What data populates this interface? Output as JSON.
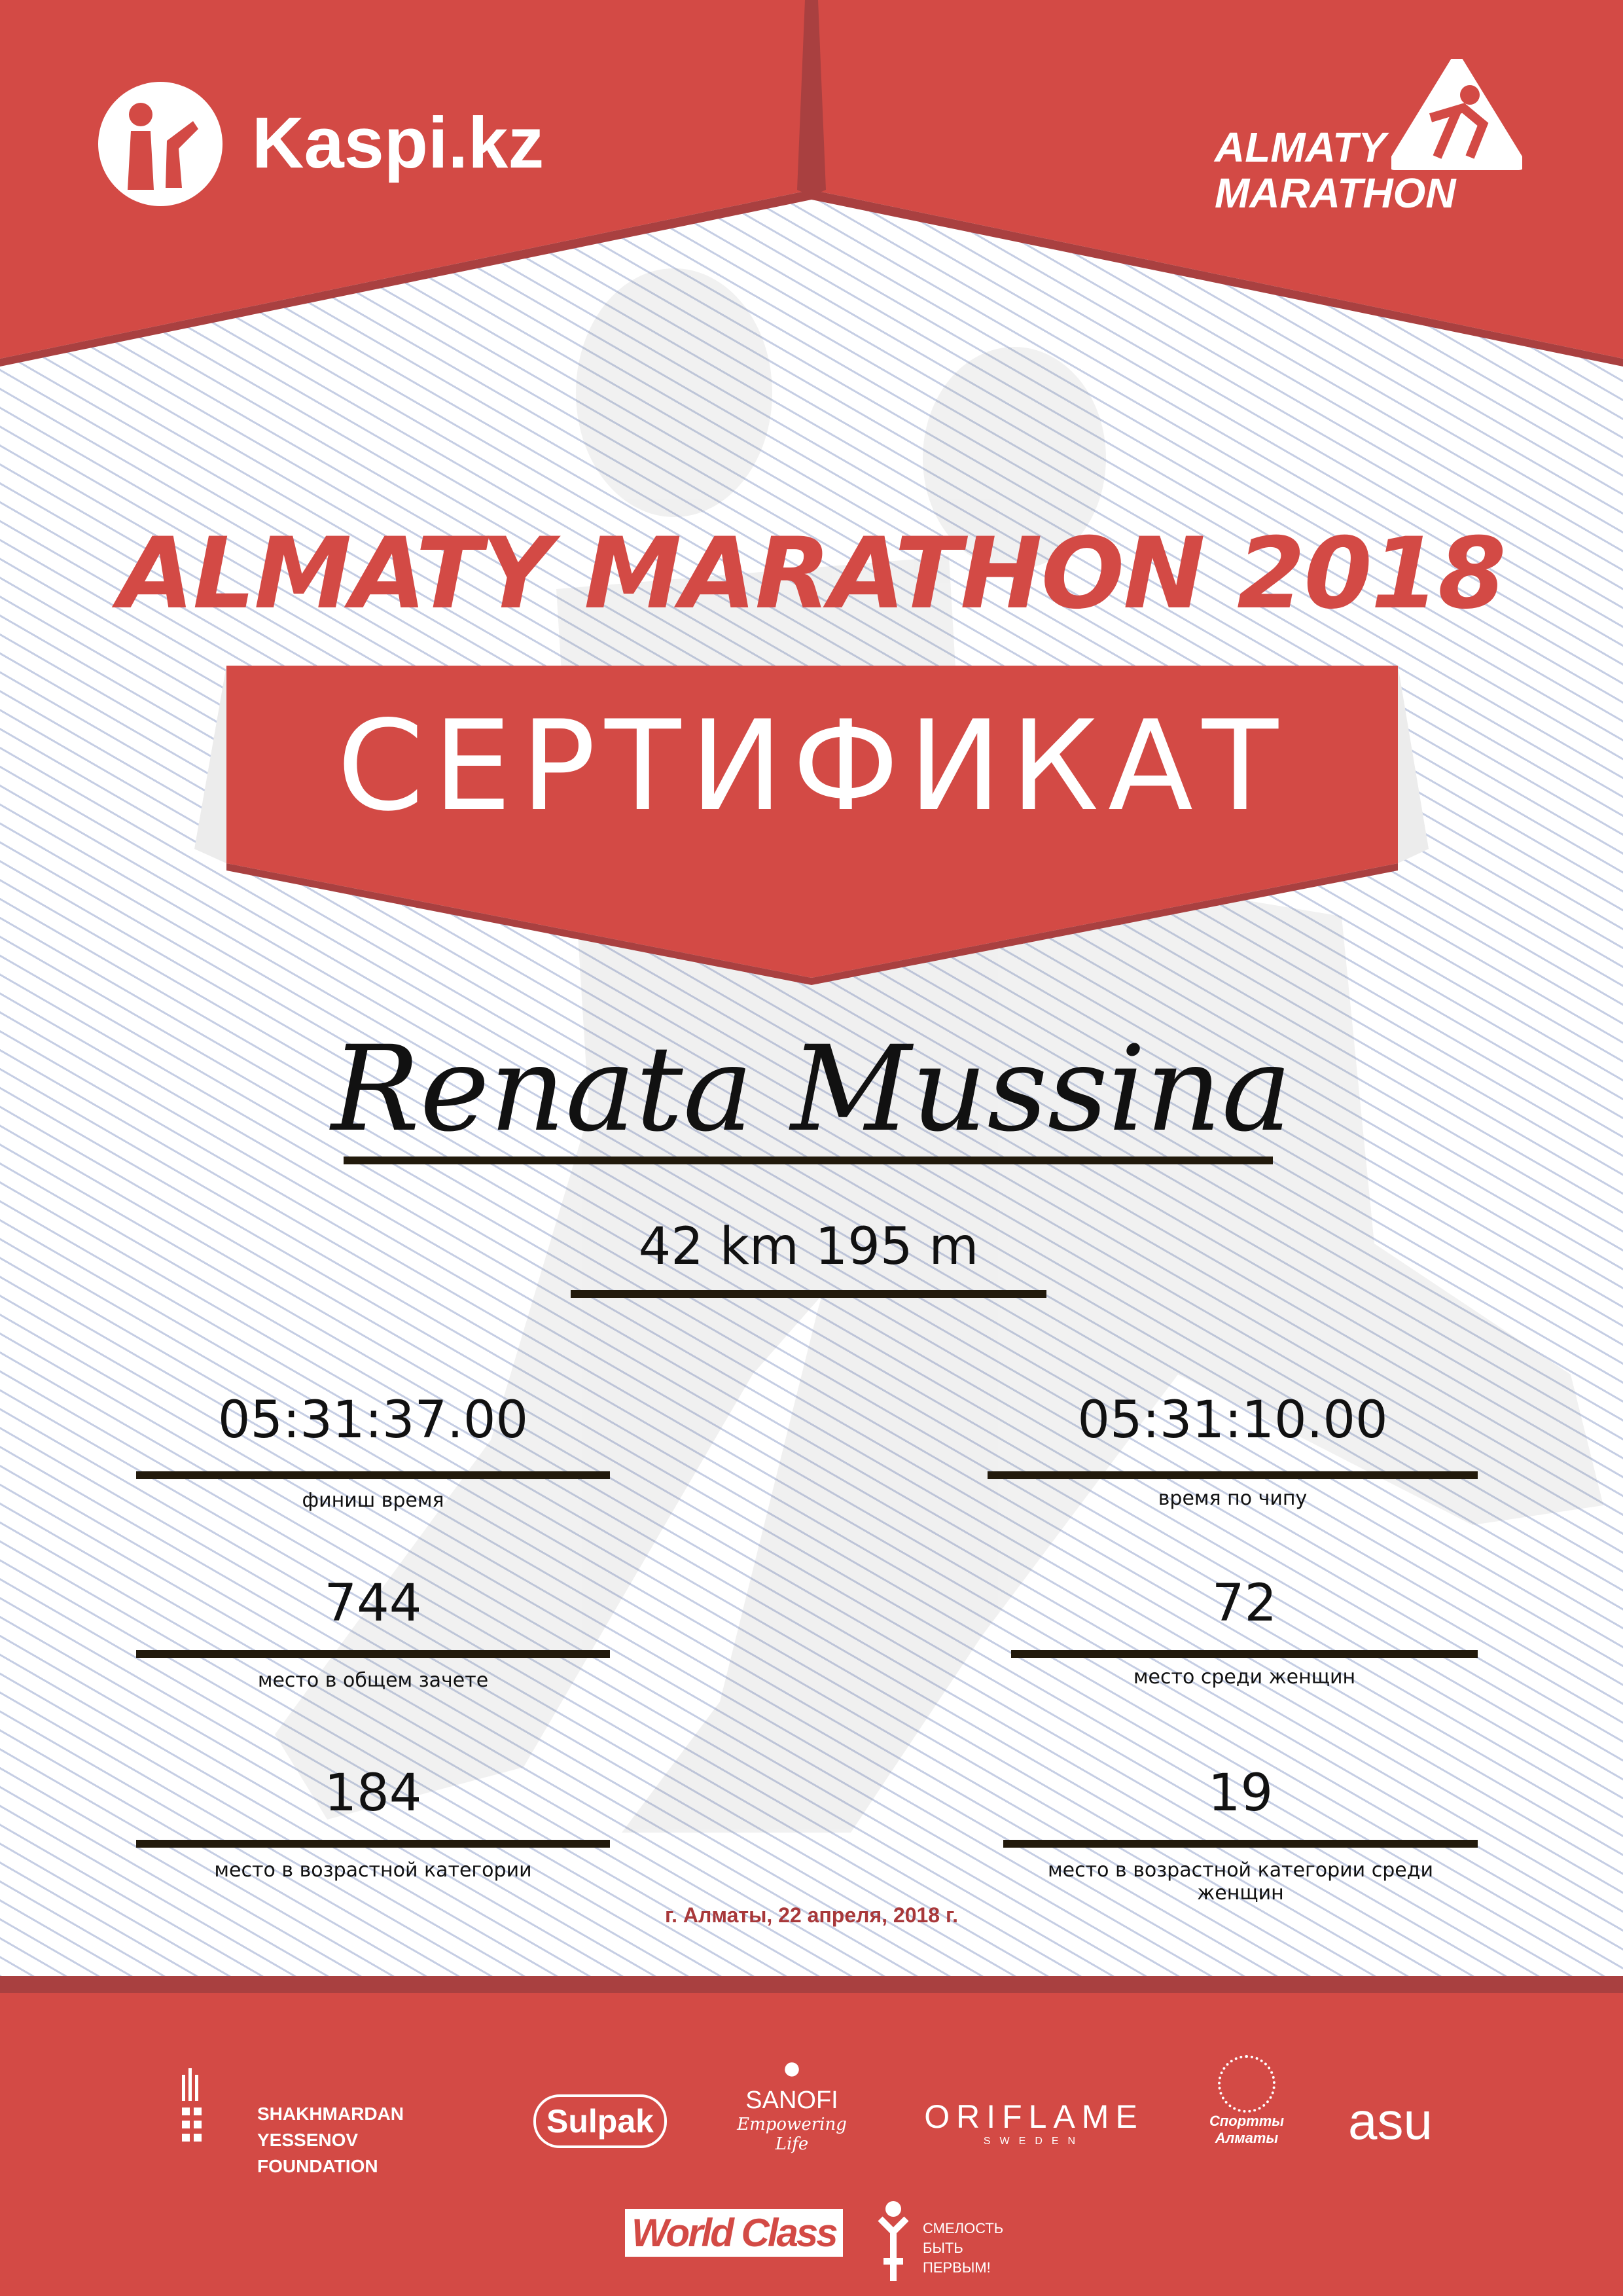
{
  "header": {
    "left_logo": "Kaspi.kz",
    "right_logo": "ALMATY MARATHON"
  },
  "title": "ALMATY MARATHON 2018",
  "banner": "СЕРТИФИКАТ",
  "participant_name": "Renata Mussina",
  "distance": "42 km 195 m",
  "results": [
    {
      "value": "05:31:37.00",
      "label": "финиш время"
    },
    {
      "value": "05:31:10.00",
      "label": "время по чипу"
    },
    {
      "value": "744",
      "label": "место в общем зачете"
    },
    {
      "value": "72",
      "label": "место среди женщин"
    },
    {
      "value": "184",
      "label": "место в возрастной категории"
    },
    {
      "value": "19",
      "label": "место в возрастной категории среди женщин"
    }
  ],
  "date": "г. Алматы, 22 апреля, 2018 г.",
  "sponsors": {
    "yessenov": "SHAKHMARDAN YESSENOV FOUNDATION",
    "sulpak": "Sulpak",
    "sanofi": "SANOFI",
    "sanofi_tag": "Empowering Life",
    "oriflame": "ORIFLAME",
    "oriflame_sub": "SWEDEN",
    "sport_almaty": "Спортты Алматы",
    "asu": "asu",
    "worldclass": "World Class",
    "fund": "СМЕЛОСТЬ БЫТЬ ПЕРВЫМ!"
  },
  "colors": {
    "brand_red": "#d34a45",
    "dark_red": "#a94040",
    "line": "#221a0c"
  }
}
